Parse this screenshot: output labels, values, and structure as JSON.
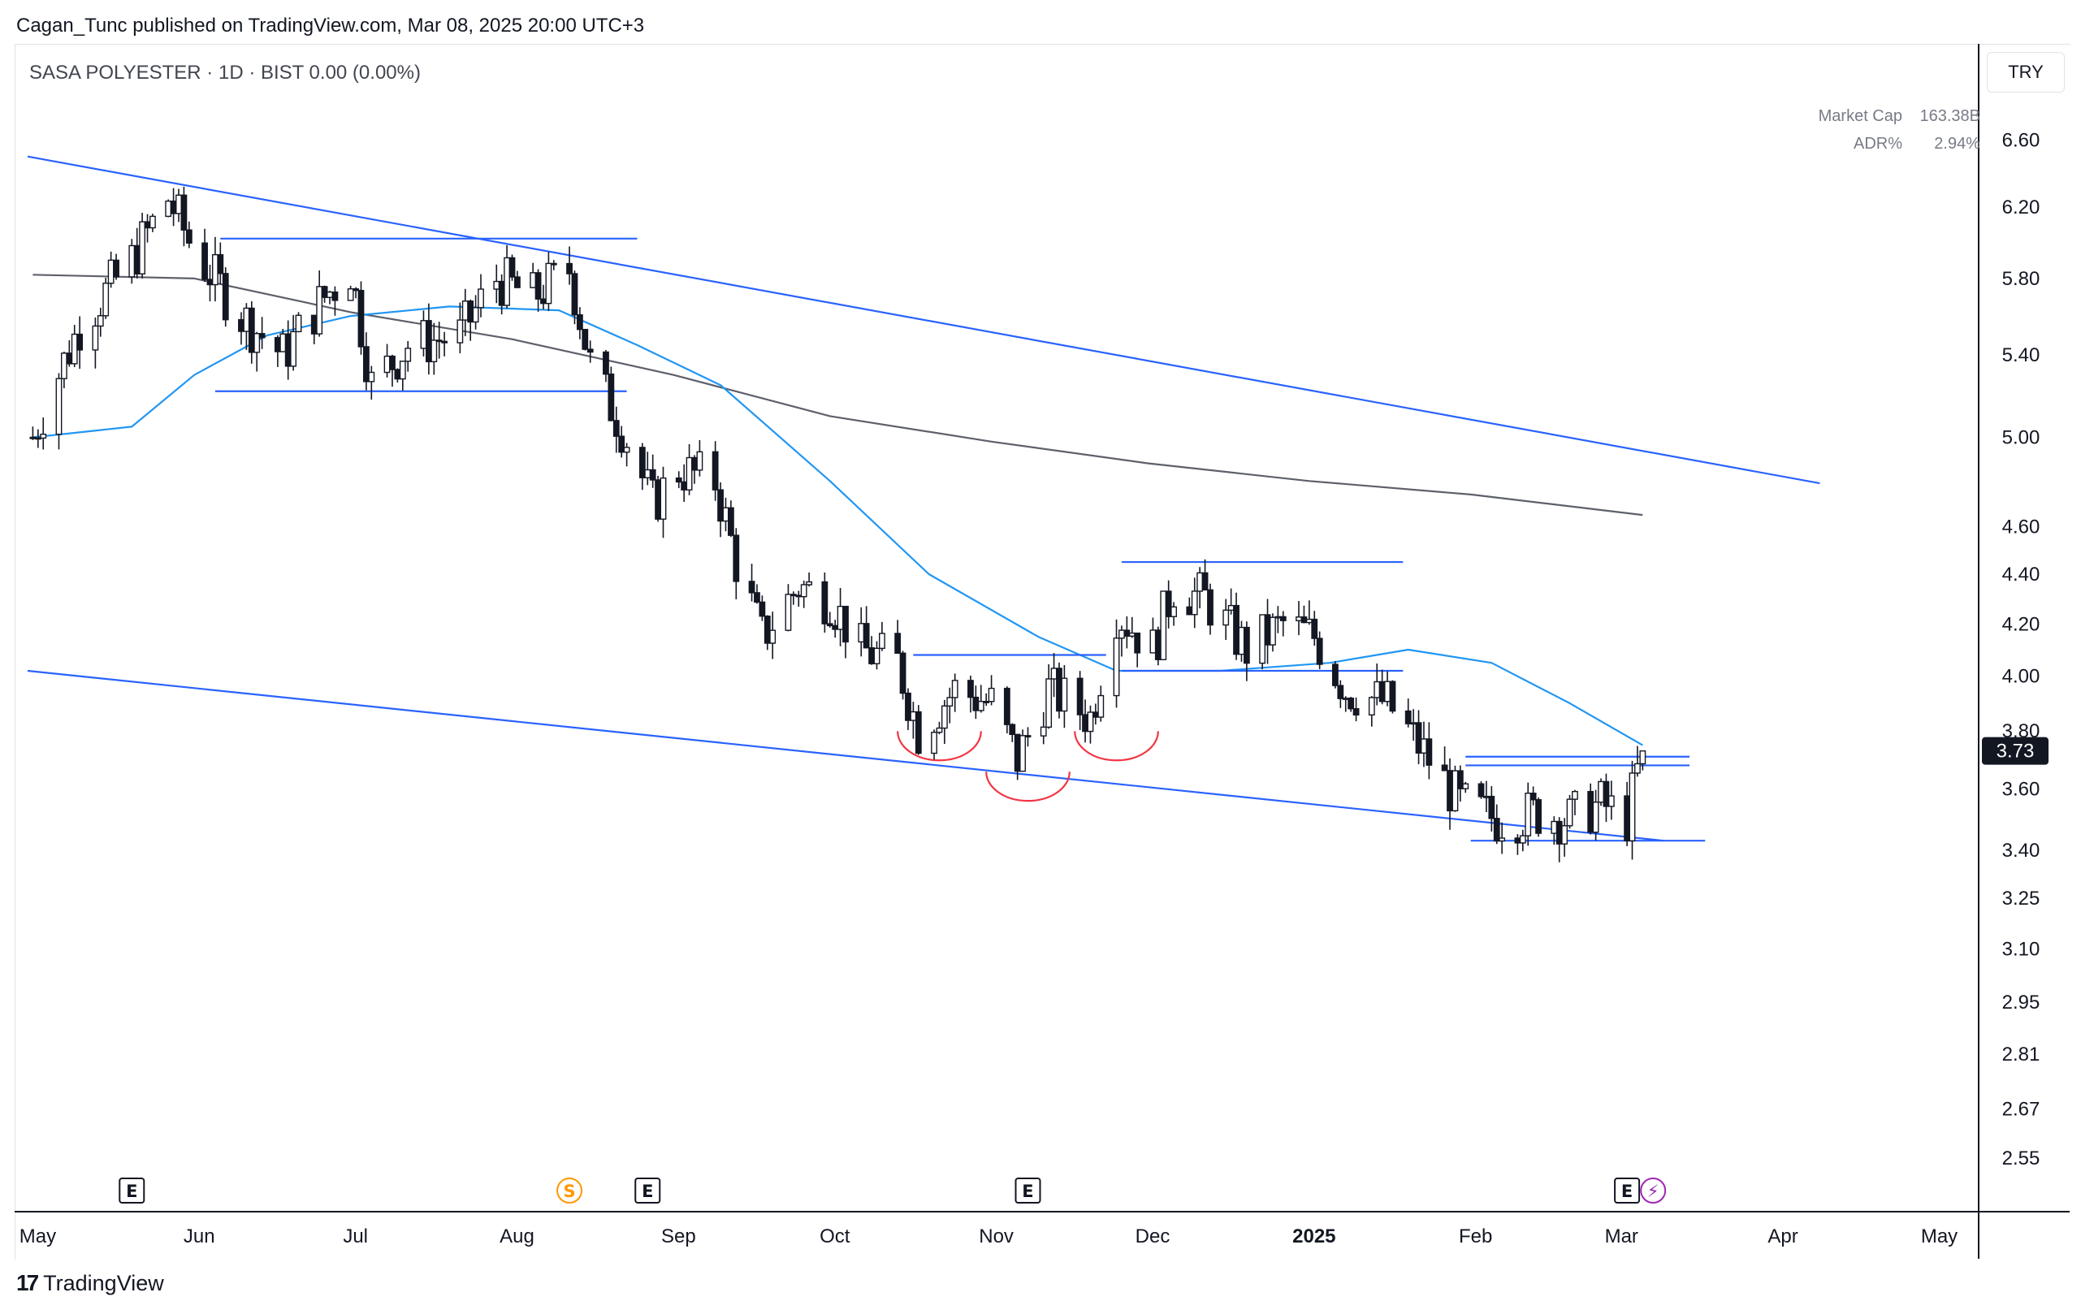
{
  "header": {
    "publisher_line": "Cagan_Tunc published on TradingView.com, Mar 08, 2025 20:00 UTC+3"
  },
  "legend": {
    "symbol_line": "SASA POLYESTER · 1D · BIST  0.00 (0.00%)"
  },
  "stats": {
    "market_cap_label": "Market Cap",
    "market_cap_value": "163.38B",
    "adr_label": "ADR%",
    "adr_value": "2.94%"
  },
  "price_scale": {
    "currency": "TRY",
    "last_price_label": "3.73"
  },
  "footer": {
    "brand": "TradingView"
  },
  "colors": {
    "up_candle": "#ffffff",
    "down_candle": "#131722",
    "wick": "#131722",
    "trendline": "#2962ff",
    "ma_short": "#2196f3",
    "ma_long": "#5d606b",
    "arc": "#f23645",
    "last_price_bg": "#131722",
    "grid_border": "#e0e3eb",
    "axis_text": "#131722"
  },
  "chart_data": {
    "type": "candlestick",
    "title": "SASA POLYESTER",
    "interval": "1D",
    "exchange": "BIST",
    "y_scale": "log",
    "ylim": [
      2.5,
      6.9
    ],
    "xlim": [
      "2024-04-30",
      "2025-05-07"
    ],
    "y_ticks": [
      "6.60",
      "6.20",
      "5.80",
      "5.40",
      "5.00",
      "4.60",
      "4.40",
      "4.20",
      "4.00",
      "3.80",
      "3.60",
      "3.40",
      "3.25",
      "3.10",
      "2.95",
      "2.81",
      "2.67",
      "2.55"
    ],
    "x_ticks": [
      {
        "date": "2024-05-01",
        "label": "May"
      },
      {
        "date": "2024-06-01",
        "label": "Jun"
      },
      {
        "date": "2024-07-01",
        "label": "Jul"
      },
      {
        "date": "2024-08-01",
        "label": "Aug"
      },
      {
        "date": "2024-09-01",
        "label": "Sep"
      },
      {
        "date": "2024-10-01",
        "label": "Oct"
      },
      {
        "date": "2024-11-01",
        "label": "Nov"
      },
      {
        "date": "2024-12-01",
        "label": "Dec"
      },
      {
        "date": "2025-01-01",
        "label": "2025"
      },
      {
        "date": "2025-02-01",
        "label": "Feb"
      },
      {
        "date": "2025-03-01",
        "label": "Mar"
      },
      {
        "date": "2025-04-01",
        "label": "Apr"
      },
      {
        "date": "2025-05-01",
        "label": "May"
      }
    ],
    "last_price": 3.73,
    "close_path": [
      {
        "date": "2024-05-01",
        "close": 5.0
      },
      {
        "date": "2024-05-10",
        "close": 5.55
      },
      {
        "date": "2024-05-20",
        "close": 5.9
      },
      {
        "date": "2024-05-27",
        "close": 6.25
      },
      {
        "date": "2024-06-01",
        "close": 5.95
      },
      {
        "date": "2024-06-10",
        "close": 5.6
      },
      {
        "date": "2024-06-18",
        "close": 5.4
      },
      {
        "date": "2024-06-26",
        "close": 5.7
      },
      {
        "date": "2024-07-01",
        "close": 5.85
      },
      {
        "date": "2024-07-05",
        "close": 5.25
      },
      {
        "date": "2024-07-12",
        "close": 5.45
      },
      {
        "date": "2024-07-22",
        "close": 5.5
      },
      {
        "date": "2024-07-29",
        "close": 5.8
      },
      {
        "date": "2024-08-05",
        "close": 5.7
      },
      {
        "date": "2024-08-12",
        "close": 5.85
      },
      {
        "date": "2024-08-16",
        "close": 5.35
      },
      {
        "date": "2024-08-22",
        "close": 5.05
      },
      {
        "date": "2024-08-28",
        "close": 4.7
      },
      {
        "date": "2024-09-02",
        "close": 4.85
      },
      {
        "date": "2024-09-09",
        "close": 4.8
      },
      {
        "date": "2024-09-13",
        "close": 4.45
      },
      {
        "date": "2024-09-18",
        "close": 4.15
      },
      {
        "date": "2024-09-25",
        "close": 4.35
      },
      {
        "date": "2024-10-01",
        "close": 4.3
      },
      {
        "date": "2024-10-07",
        "close": 4.1
      },
      {
        "date": "2024-10-14",
        "close": 4.05
      },
      {
        "date": "2024-10-18",
        "close": 3.8
      },
      {
        "date": "2024-10-25",
        "close": 3.95
      },
      {
        "date": "2024-11-01",
        "close": 3.9
      },
      {
        "date": "2024-11-06",
        "close": 3.7
      },
      {
        "date": "2024-11-12",
        "close": 3.95
      },
      {
        "date": "2024-11-20",
        "close": 3.85
      },
      {
        "date": "2024-11-25",
        "close": 4.25
      },
      {
        "date": "2024-12-02",
        "close": 4.1
      },
      {
        "date": "2024-12-06",
        "close": 4.35
      },
      {
        "date": "2024-12-12",
        "close": 4.3
      },
      {
        "date": "2024-12-20",
        "close": 4.1
      },
      {
        "date": "2024-12-27",
        "close": 4.2
      },
      {
        "date": "2025-01-02",
        "close": 4.15
      },
      {
        "date": "2025-01-08",
        "close": 3.95
      },
      {
        "date": "2025-01-16",
        "close": 3.9
      },
      {
        "date": "2025-01-24",
        "close": 3.7
      },
      {
        "date": "2025-01-30",
        "close": 3.55
      },
      {
        "date": "2025-02-06",
        "close": 3.5
      },
      {
        "date": "2025-02-14",
        "close": 3.52
      },
      {
        "date": "2025-02-20",
        "close": 3.5
      },
      {
        "date": "2025-02-26",
        "close": 3.55
      },
      {
        "date": "2025-03-03",
        "close": 3.5
      },
      {
        "date": "2025-03-06",
        "close": 3.73
      }
    ],
    "moving_averages": [
      {
        "name": "short",
        "color": "#2196f3",
        "points": [
          {
            "date": "2024-05-01",
            "value": 5.0
          },
          {
            "date": "2024-05-20",
            "value": 5.05
          },
          {
            "date": "2024-06-01",
            "value": 5.3
          },
          {
            "date": "2024-06-15",
            "value": 5.5
          },
          {
            "date": "2024-07-01",
            "value": 5.6
          },
          {
            "date": "2024-07-20",
            "value": 5.65
          },
          {
            "date": "2024-08-10",
            "value": 5.63
          },
          {
            "date": "2024-08-25",
            "value": 5.45
          },
          {
            "date": "2024-09-10",
            "value": 5.25
          },
          {
            "date": "2024-10-01",
            "value": 4.8
          },
          {
            "date": "2024-10-20",
            "value": 4.4
          },
          {
            "date": "2024-11-10",
            "value": 4.15
          },
          {
            "date": "2024-11-25",
            "value": 4.02
          },
          {
            "date": "2024-12-15",
            "value": 4.02
          },
          {
            "date": "2025-01-05",
            "value": 4.05
          },
          {
            "date": "2025-01-20",
            "value": 4.1
          },
          {
            "date": "2025-02-05",
            "value": 4.05
          },
          {
            "date": "2025-02-20",
            "value": 3.9
          },
          {
            "date": "2025-03-06",
            "value": 3.75
          }
        ]
      },
      {
        "name": "long",
        "color": "#5d606b",
        "points": [
          {
            "date": "2024-05-01",
            "value": 5.82
          },
          {
            "date": "2024-06-01",
            "value": 5.8
          },
          {
            "date": "2024-07-01",
            "value": 5.62
          },
          {
            "date": "2024-08-01",
            "value": 5.48
          },
          {
            "date": "2024-09-01",
            "value": 5.3
          },
          {
            "date": "2024-10-01",
            "value": 5.1
          },
          {
            "date": "2024-11-01",
            "value": 4.98
          },
          {
            "date": "2024-12-01",
            "value": 4.88
          },
          {
            "date": "2025-01-01",
            "value": 4.8
          },
          {
            "date": "2025-02-01",
            "value": 4.74
          },
          {
            "date": "2025-03-06",
            "value": 4.65
          }
        ]
      }
    ],
    "drawings": {
      "trendlines": [
        {
          "from": {
            "date": "2024-04-30",
            "price": 6.5
          },
          "to": {
            "date": "2025-04-09",
            "price": 4.79
          }
        },
        {
          "from": {
            "date": "2024-04-30",
            "price": 4.02
          },
          "to": {
            "date": "2025-03-10",
            "price": 3.43
          }
        }
      ],
      "horizontal_lines": [
        {
          "from": "2024-06-06",
          "to": "2024-08-25",
          "price": 6.02
        },
        {
          "from": "2024-06-05",
          "to": "2024-08-23",
          "price": 5.22
        },
        {
          "from": "2024-11-26",
          "to": "2025-01-19",
          "price": 4.45
        },
        {
          "from": "2024-10-17",
          "to": "2024-11-23",
          "price": 4.08
        },
        {
          "from": "2024-11-26",
          "to": "2025-01-19",
          "price": 4.02
        },
        {
          "from": "2025-01-31",
          "to": "2025-03-15",
          "price": 3.71
        },
        {
          "from": "2025-01-31",
          "to": "2025-03-15",
          "price": 3.68
        },
        {
          "from": "2025-02-01",
          "to": "2025-03-18",
          "price": 3.43
        }
      ],
      "arcs": [
        {
          "from": "2024-10-14",
          "to": "2024-10-30",
          "price": 3.77
        },
        {
          "from": "2024-10-31",
          "to": "2024-11-16",
          "price": 3.63
        },
        {
          "from": "2024-11-17",
          "to": "2024-12-03",
          "price": 3.77
        }
      ]
    },
    "event_markers": [
      {
        "date": "2024-05-20",
        "label": "E",
        "kind": "earnings"
      },
      {
        "date": "2024-08-12",
        "label": "S",
        "kind": "split"
      },
      {
        "date": "2024-08-27",
        "label": "E",
        "kind": "earnings"
      },
      {
        "date": "2024-11-08",
        "label": "E",
        "kind": "earnings"
      },
      {
        "date": "2025-03-03",
        "label": "E",
        "kind": "earnings"
      },
      {
        "date": "2025-03-08",
        "label": "⚡",
        "kind": "dividend"
      }
    ]
  }
}
